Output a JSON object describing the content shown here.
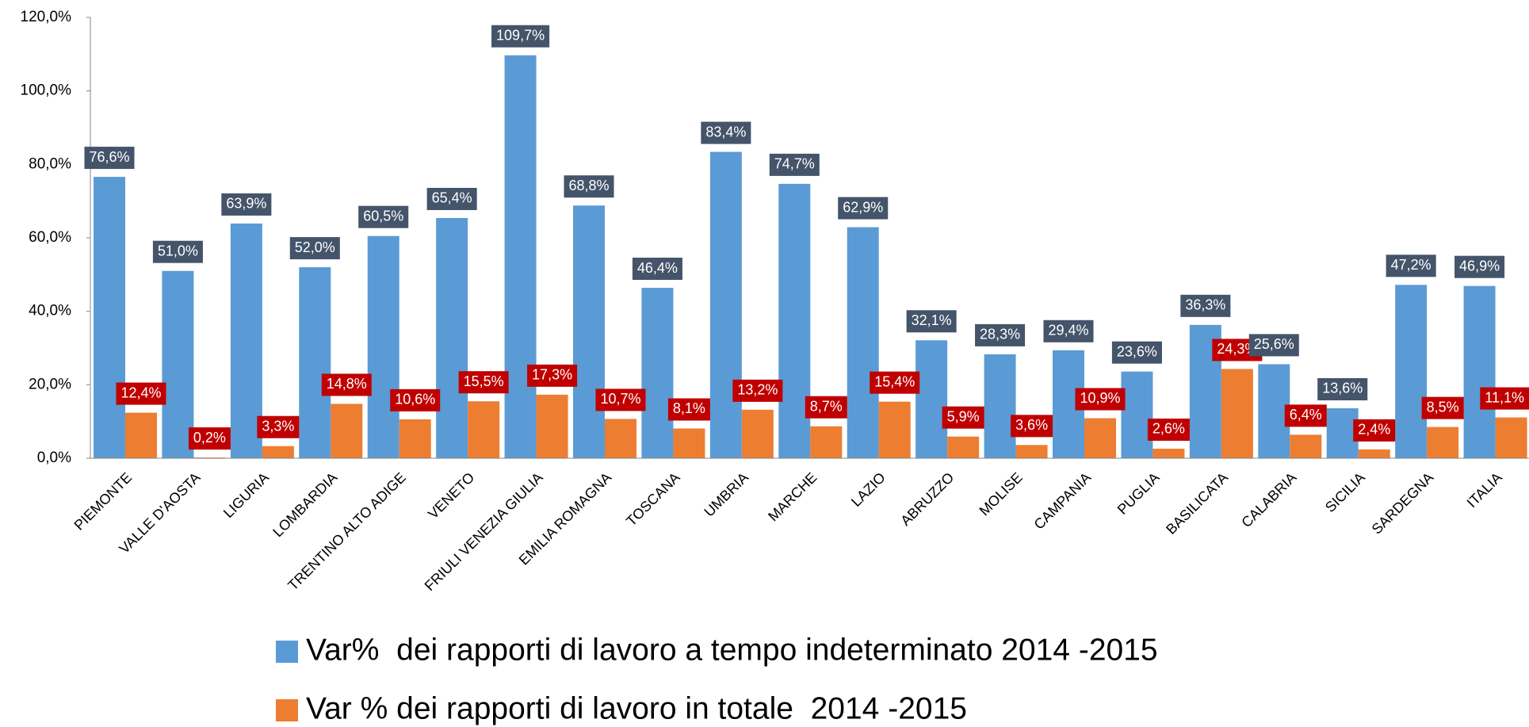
{
  "chart_data": {
    "type": "bar",
    "categories": [
      "PIEMONTE",
      "VALLE D'AOSTA",
      "LIGURIA",
      "LOMBARDIA",
      "TRENTINO ALTO ADIGE",
      "VENETO",
      "FRIULI VENEZIA GIULIA",
      "EMILIA ROMAGNA",
      "TOSCANA",
      "UMBRIA",
      "MARCHE",
      "LAZIO",
      "ABRUZZO",
      "MOLISE",
      "CAMPANIA",
      "PUGLIA",
      "BASILICATA",
      "CALABRIA",
      "SICILIA",
      "SARDEGNA",
      "ITALIA"
    ],
    "series": [
      {
        "name": "Var%  dei rapporti di lavoro a tempo indeterminato 2014 -2015",
        "color": "#5b9bd5",
        "label_color": "#44546a",
        "values": [
          76.6,
          51.0,
          63.9,
          52.0,
          60.5,
          65.4,
          109.7,
          68.8,
          46.4,
          83.4,
          74.7,
          62.9,
          32.1,
          28.3,
          29.4,
          23.6,
          36.3,
          25.6,
          13.6,
          47.2,
          46.9
        ],
        "value_labels": [
          "76,6%",
          "51,0%",
          "63,9%",
          "52,0%",
          "60,5%",
          "65,4%",
          "109,7%",
          "68,8%",
          "46,4%",
          "83,4%",
          "74,7%",
          "62,9%",
          "32,1%",
          "28,3%",
          "29,4%",
          "23,6%",
          "36,3%",
          "25,6%",
          "13,6%",
          "47,2%",
          "46,9%"
        ]
      },
      {
        "name": "Var % dei rapporti di lavoro in totale  2014 -2015",
        "color": "#ed7d31",
        "label_color": "#c00000",
        "values": [
          12.4,
          0.2,
          3.3,
          14.8,
          10.6,
          15.5,
          17.3,
          10.7,
          8.1,
          13.2,
          8.7,
          15.4,
          5.9,
          3.6,
          10.9,
          2.6,
          24.3,
          6.4,
          2.4,
          8.5,
          11.1
        ],
        "value_labels": [
          "12,4%",
          "0,2%",
          "3,3%",
          "14,8%",
          "10,6%",
          "15,5%",
          "17,3%",
          "10,7%",
          "8,1%",
          "13,2%",
          "8,7%",
          "15,4%",
          "5,9%",
          "3,6%",
          "10,9%",
          "2,6%",
          "24,3%",
          "6,4%",
          "2,4%",
          "8,5%",
          "11,1%"
        ]
      }
    ],
    "ylim": [
      0,
      120
    ],
    "yticks": [
      {
        "value": 0,
        "label": "0,0%"
      },
      {
        "value": 20,
        "label": "20,0%"
      },
      {
        "value": 40,
        "label": "40,0%"
      },
      {
        "value": 60,
        "label": "60,0%"
      },
      {
        "value": 80,
        "label": "80,0%"
      },
      {
        "value": 100,
        "label": "100,0%"
      },
      {
        "value": 120,
        "label": "120,0%"
      }
    ],
    "grid": false
  }
}
